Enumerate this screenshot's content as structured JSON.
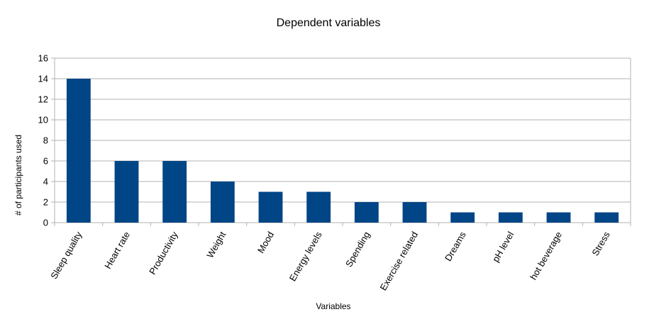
{
  "chart_data": {
    "type": "bar",
    "title": "Dependent variables",
    "xlabel": "Variables",
    "ylabel": "# of participants used",
    "categories": [
      "Sleep quality",
      "Heart rate",
      "Productivity",
      "Weight",
      "Mood",
      "Energy levels",
      "Spending",
      "Exercise related",
      "Dreams",
      "pH level",
      "hot beverage",
      "Stress"
    ],
    "values": [
      14,
      6,
      6,
      4,
      3,
      3,
      2,
      2,
      1,
      1,
      1,
      1
    ],
    "ylim": [
      0,
      16
    ],
    "yticks": [
      0,
      2,
      4,
      6,
      8,
      10,
      12,
      14,
      16
    ],
    "grid": true,
    "legend": "none",
    "bar_color": "#004586",
    "grid_color": "#b3b3b3"
  }
}
